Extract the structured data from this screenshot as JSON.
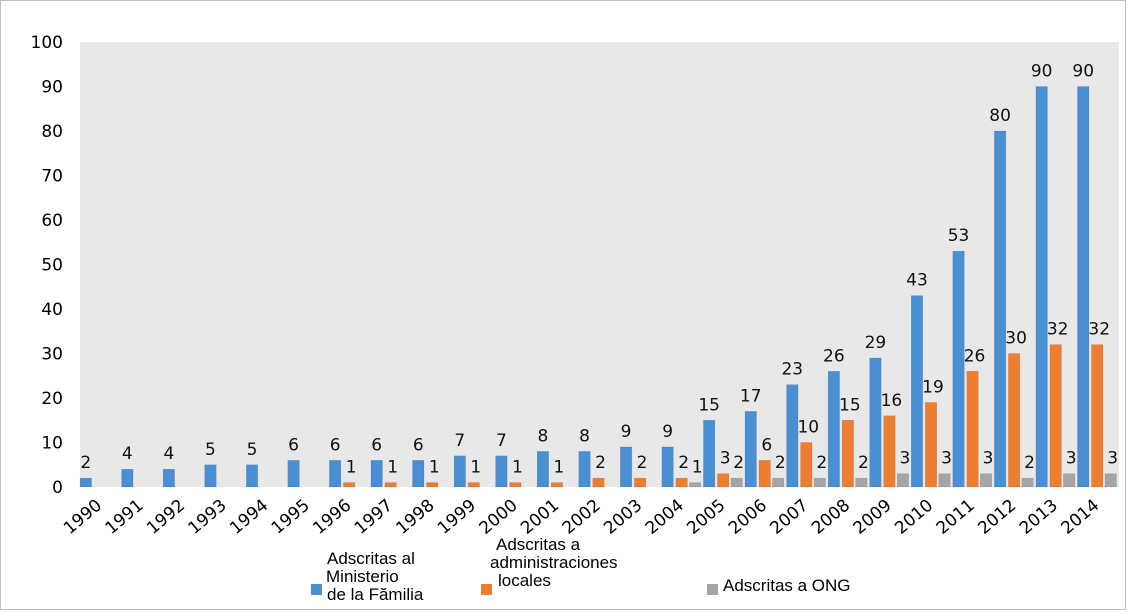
{
  "chart_data": {
    "type": "bar",
    "categories": [
      "1990",
      "1991",
      "1992",
      "1993",
      "1994",
      "1995",
      "1996",
      "1997",
      "1998",
      "1999",
      "2000",
      "2001",
      "2002",
      "2003",
      "2004",
      "2005",
      "2006",
      "2007",
      "2008",
      "2009",
      "2010",
      "2011",
      "2012",
      "2013",
      "2014"
    ],
    "series": [
      {
        "name": "Adscritas al Ministerio de la Fămilia",
        "legend_lines": [
          "Adscritas al",
          "Ministerio",
          "de la Fămilia"
        ],
        "color": "#4a8fd4",
        "values": [
          2,
          4,
          4,
          5,
          5,
          6,
          6,
          6,
          6,
          7,
          7,
          8,
          8,
          9,
          9,
          15,
          17,
          23,
          26,
          29,
          43,
          53,
          80,
          90,
          90
        ],
        "labels": [
          "2",
          "4",
          "4",
          "5",
          "5",
          "6",
          "6",
          "6",
          "6",
          "7",
          "7",
          "8",
          "8",
          "9",
          "9",
          "15",
          "17",
          "23",
          "26",
          "29",
          "43",
          "53",
          "80",
          "90",
          "90"
        ]
      },
      {
        "name": "Adscritas a administraciones locales",
        "legend_lines": [
          "Adscritas a",
          "administraciones",
          "locales"
        ],
        "color": "#ed7d31",
        "values": [
          0,
          0,
          0,
          0,
          0,
          0,
          1,
          1,
          1,
          1,
          1,
          1,
          2,
          2,
          2,
          3,
          6,
          10,
          15,
          16,
          19,
          26,
          30,
          32,
          32
        ],
        "labels": [
          null,
          null,
          null,
          null,
          null,
          null,
          "1",
          "1",
          "1",
          "1",
          "1",
          "1",
          "2",
          "2",
          "2",
          "3",
          "6",
          "10",
          "15",
          "16",
          "19",
          "26",
          "30",
          "32",
          "32"
        ]
      },
      {
        "name": "Adscritas a ONG",
        "legend_lines": [
          "Adscritas a ONG"
        ],
        "color": "#a5a5a5",
        "values": [
          0,
          0,
          0,
          0,
          0,
          0,
          0,
          0,
          0,
          0,
          0,
          0,
          0,
          0,
          1,
          2,
          2,
          2,
          2,
          3,
          3,
          3,
          2,
          3,
          3
        ],
        "labels": [
          null,
          null,
          null,
          null,
          null,
          null,
          null,
          null,
          null,
          null,
          null,
          null,
          null,
          null,
          "1",
          "2",
          "2",
          "2",
          "2",
          "3",
          "3",
          "3",
          "2",
          "3",
          "3"
        ]
      }
    ],
    "yticks": [
      "0",
      "10",
      "20",
      "30",
      "40",
      "50",
      "60",
      "70",
      "80",
      "90",
      "100"
    ],
    "ylim": [
      0,
      100
    ],
    "grid": false,
    "legend_position": "bottom",
    "plot_background": "#e8e8e8"
  }
}
